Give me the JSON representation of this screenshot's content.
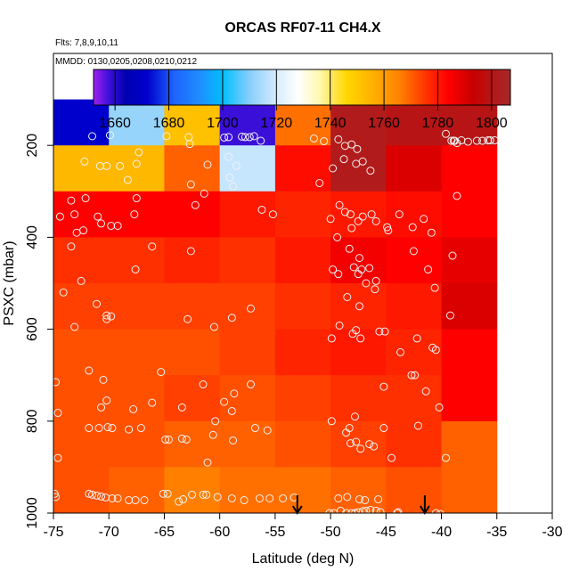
{
  "chart_data": {
    "type": "heatmap",
    "title": "ORCAS RF07-11 CH4.X",
    "subtitle_flights": "Flts: 7,8,9,10,11",
    "subtitle_dates": "MMDD: 0130,0205,0208,0210,0212",
    "xlabel": "Latitude (deg N)",
    "ylabel": "PSXC (mbar)",
    "xlim": [
      -75,
      -30
    ],
    "ylim": [
      1000,
      0
    ],
    "x_ticks": [
      -75,
      -70,
      -65,
      -60,
      -55,
      -50,
      -45,
      -40,
      -35,
      -30
    ],
    "x_tick_labels": [
      "-75",
      "-70",
      "-65",
      "-60",
      "-55",
      "-50",
      "-45",
      "-40",
      "-35",
      "-30"
    ],
    "y_ticks": [
      200,
      400,
      600,
      800,
      1000
    ],
    "y_tick_labels": [
      "200",
      "400",
      "600",
      "800",
      "1000"
    ],
    "colorbar": {
      "min": 1652,
      "max": 1807,
      "ticks": [
        1660,
        1680,
        1700,
        1720,
        1740,
        1760,
        1780,
        1800
      ],
      "tick_labels": [
        "1660",
        "1680",
        "1700",
        "1720",
        "1740",
        "1760",
        "1780",
        "1800"
      ],
      "colors": [
        {
          "v": 1652,
          "c": "#a020f0"
        },
        {
          "v": 1658,
          "c": "#3a0fd8"
        },
        {
          "v": 1664,
          "c": "#0000b0"
        },
        {
          "v": 1672,
          "c": "#0000cd"
        },
        {
          "v": 1682,
          "c": "#1e63ff"
        },
        {
          "v": 1692,
          "c": "#1e90ff"
        },
        {
          "v": 1700,
          "c": "#00bfff"
        },
        {
          "v": 1710,
          "c": "#87cefa"
        },
        {
          "v": 1720,
          "c": "#d6ecff"
        },
        {
          "v": 1728,
          "c": "#ffffff"
        },
        {
          "v": 1736,
          "c": "#fff8b0"
        },
        {
          "v": 1746,
          "c": "#ffd700"
        },
        {
          "v": 1756,
          "c": "#ffb000"
        },
        {
          "v": 1766,
          "c": "#ff8000"
        },
        {
          "v": 1776,
          "c": "#ff3000"
        },
        {
          "v": 1784,
          "c": "#ff0000"
        },
        {
          "v": 1793,
          "c": "#c80000"
        },
        {
          "v": 1807,
          "c": "#a52a2a"
        }
      ]
    },
    "grid_x_edges": [
      -75,
      -70,
      -65,
      -60,
      -55,
      -50,
      -45,
      -40,
      -35
    ],
    "grid_p_edges": [
      100,
      200,
      300,
      400,
      500,
      600,
      700,
      800,
      900,
      1000
    ],
    "cells": [
      [
        1672,
        1712,
        1752,
        1658,
        1768,
        1802,
        1800,
        1800
      ],
      [
        1754,
        1754,
        1770,
        1718,
        1782,
        1802,
        1790,
        1784
      ],
      [
        1784,
        1784,
        1784,
        1780,
        1778,
        1780,
        1782,
        1784
      ],
      [
        1776,
        1776,
        1778,
        1776,
        1780,
        1786,
        1784,
        1788
      ],
      [
        1774,
        1774,
        1774,
        1774,
        1776,
        1778,
        1780,
        1790
      ],
      [
        1772,
        1772,
        1772,
        1774,
        1778,
        1780,
        1778,
        1784
      ],
      [
        1772,
        1772,
        1774,
        1772,
        1774,
        1776,
        1776,
        1784
      ],
      [
        1772,
        1772,
        1770,
        1770,
        1772,
        1774,
        1776,
        1770
      ],
      [
        1772,
        1770,
        1766,
        1768,
        1768,
        1770,
        1772,
        1770
      ]
    ],
    "arrows_lat": [
      -53,
      -41.5
    ],
    "points": [
      [
        -71.5,
        180
      ],
      [
        -69.9,
        178
      ],
      [
        -67.3,
        215
      ],
      [
        -64.8,
        180
      ],
      [
        -62.8,
        182
      ],
      [
        -62.7,
        197
      ],
      [
        -59.6,
        183
      ],
      [
        -59.2,
        182
      ],
      [
        -58,
        181
      ],
      [
        -57.7,
        182
      ],
      [
        -57.3,
        182
      ],
      [
        -56.9,
        180
      ],
      [
        -56.3,
        190
      ],
      [
        -59.2,
        225
      ],
      [
        -58.5,
        245
      ],
      [
        -61.1,
        242
      ],
      [
        -59.1,
        270
      ],
      [
        -58.8,
        289
      ],
      [
        -72.2,
        235
      ],
      [
        -70.8,
        245
      ],
      [
        -70.2,
        245
      ],
      [
        -69,
        245
      ],
      [
        -67.5,
        240
      ],
      [
        -73.4,
        320
      ],
      [
        -72.1,
        315
      ],
      [
        -68.3,
        275
      ],
      [
        -67.5,
        315
      ],
      [
        -62.6,
        285
      ],
      [
        -62.2,
        330
      ],
      [
        -61.4,
        305
      ],
      [
        -56.2,
        340
      ],
      [
        -55.2,
        350
      ],
      [
        -74.4,
        355
      ],
      [
        -73.1,
        350
      ],
      [
        -72.9,
        390
      ],
      [
        -72.3,
        385
      ],
      [
        -69.8,
        375
      ],
      [
        -69.2,
        375
      ],
      [
        -67.7,
        350
      ],
      [
        -66.1,
        420
      ],
      [
        -67.6,
        470
      ],
      [
        -73.4,
        420
      ],
      [
        -74.1,
        520
      ],
      [
        -72.5,
        495
      ],
      [
        -71,
        355
      ],
      [
        -70.7,
        370
      ],
      [
        -62.6,
        430
      ],
      [
        -73.1,
        595
      ],
      [
        -71.1,
        545
      ],
      [
        -70.2,
        570
      ],
      [
        -69.8,
        572
      ],
      [
        -70.2,
        578
      ],
      [
        -62.9,
        578
      ],
      [
        -60.5,
        595
      ],
      [
        -58.9,
        575
      ],
      [
        -57.2,
        555
      ],
      [
        -71.8,
        690
      ],
      [
        -70.5,
        710
      ],
      [
        -74.8,
        715
      ],
      [
        -65.3,
        693
      ],
      [
        -61.5,
        720
      ],
      [
        -59.6,
        758
      ],
      [
        -58.7,
        740
      ],
      [
        -57.2,
        720
      ],
      [
        -70.7,
        770
      ],
      [
        -70.2,
        755
      ],
      [
        -74.6,
        782
      ],
      [
        -67.8,
        774
      ],
      [
        -66.1,
        760
      ],
      [
        -63.4,
        770
      ],
      [
        -60.6,
        830
      ],
      [
        -58.9,
        778
      ],
      [
        -60.4,
        800
      ],
      [
        -71.8,
        815
      ],
      [
        -70.9,
        815
      ],
      [
        -70.1,
        813
      ],
      [
        -69.7,
        815
      ],
      [
        -68.2,
        818
      ],
      [
        -67.1,
        815
      ],
      [
        -64.9,
        840
      ],
      [
        -64.6,
        840
      ],
      [
        -63.4,
        838
      ],
      [
        -63,
        840
      ],
      [
        -61.1,
        890
      ],
      [
        -58.8,
        842
      ],
      [
        -56.8,
        815
      ],
      [
        -55.7,
        820
      ],
      [
        -74.6,
        880
      ],
      [
        -71.8,
        958
      ],
      [
        -71.5,
        960
      ],
      [
        -71.1,
        962
      ],
      [
        -70.7,
        964
      ],
      [
        -70.3,
        966
      ],
      [
        -69.7,
        968
      ],
      [
        -69.2,
        968
      ],
      [
        -68.2,
        972
      ],
      [
        -67.6,
        972
      ],
      [
        -66.8,
        972
      ],
      [
        -65.1,
        958
      ],
      [
        -64.7,
        958
      ],
      [
        -63.7,
        975
      ],
      [
        -63.3,
        970
      ],
      [
        -62.5,
        960
      ],
      [
        -61.5,
        960
      ],
      [
        -61.2,
        960
      ],
      [
        -60.2,
        965
      ],
      [
        -58.9,
        968
      ],
      [
        -57.8,
        972
      ],
      [
        -56.4,
        968
      ],
      [
        -55.5,
        968
      ],
      [
        -54.3,
        968
      ],
      [
        -53.3,
        966
      ],
      [
        -74.9,
        958
      ],
      [
        -74.8,
        965
      ],
      [
        -51.5,
        185
      ],
      [
        -50.6,
        191
      ],
      [
        -49.3,
        187
      ],
      [
        -48.7,
        201
      ],
      [
        -48.1,
        198
      ],
      [
        -47.6,
        208
      ],
      [
        -48.8,
        230
      ],
      [
        -47.7,
        240
      ],
      [
        -47.1,
        235
      ],
      [
        -46.4,
        255
      ],
      [
        -49.8,
        250
      ],
      [
        -51,
        282
      ],
      [
        -47.1,
        355
      ],
      [
        -46.3,
        350
      ],
      [
        -45.9,
        365
      ],
      [
        -44.9,
        378
      ],
      [
        -44.8,
        385
      ],
      [
        -48.1,
        380
      ],
      [
        -47.5,
        365
      ],
      [
        -48.7,
        345
      ],
      [
        -49.2,
        330
      ],
      [
        -50,
        360
      ],
      [
        -49.4,
        400
      ],
      [
        -47.9,
        465
      ],
      [
        -47.4,
        445
      ],
      [
        -47.5,
        480
      ],
      [
        -47.2,
        470
      ],
      [
        -45.9,
        495
      ],
      [
        -46.5,
        467
      ],
      [
        -46.8,
        500
      ],
      [
        -47.4,
        550
      ],
      [
        -48.2,
        350
      ],
      [
        -48.3,
        425
      ],
      [
        -49.8,
        470
      ],
      [
        -49.3,
        480
      ],
      [
        -48.5,
        530
      ],
      [
        -46,
        513
      ],
      [
        -45.6,
        605
      ],
      [
        -43.7,
        650
      ],
      [
        -42.2,
        620
      ],
      [
        -42.7,
        700
      ],
      [
        -45.2,
        725
      ],
      [
        -47.8,
        790
      ],
      [
        -48.3,
        815
      ],
      [
        -48.6,
        825
      ],
      [
        -49.9,
        800
      ],
      [
        -47.3,
        860
      ],
      [
        -46.1,
        855
      ],
      [
        -46.5,
        850
      ],
      [
        -44.5,
        880
      ],
      [
        -45.2,
        815
      ],
      [
        -49.2,
        592
      ],
      [
        -48,
        610
      ],
      [
        -47.7,
        602
      ],
      [
        -47.3,
        620
      ],
      [
        -49.9,
        620
      ],
      [
        -45.1,
        605
      ],
      [
        -43.8,
        350
      ],
      [
        -42.5,
        430
      ],
      [
        -41.2,
        470
      ],
      [
        -40.6,
        510
      ],
      [
        -40.9,
        390
      ],
      [
        -42.6,
        378
      ],
      [
        -41.6,
        360
      ],
      [
        -41.4,
        735
      ],
      [
        -40.5,
        645
      ],
      [
        -40.8,
        640
      ],
      [
        -40.2,
        770
      ],
      [
        -39.6,
        175
      ],
      [
        -38.6,
        195
      ],
      [
        -38.2,
        189
      ],
      [
        -37.6,
        192
      ],
      [
        -36.8,
        190
      ],
      [
        -36.3,
        190
      ],
      [
        -35.8,
        189
      ],
      [
        -35.6,
        189
      ],
      [
        -35.2,
        189
      ],
      [
        -39.1,
        190
      ],
      [
        -38.9,
        190
      ],
      [
        -38.8,
        190
      ],
      [
        -38.6,
        310
      ],
      [
        -39,
        440
      ],
      [
        -39.2,
        570
      ],
      [
        -42.4,
        700
      ],
      [
        -42.1,
        810
      ],
      [
        -39.6,
        880
      ],
      [
        -40.5,
        1000
      ],
      [
        -40.1,
        1002
      ],
      [
        -43.9,
        998
      ],
      [
        -44,
        1000
      ],
      [
        -47.1,
        996
      ],
      [
        -47.5,
        998
      ],
      [
        -48.1,
        1000
      ],
      [
        -48.6,
        1000
      ],
      [
        -49.1,
        995
      ],
      [
        -49.7,
        1000
      ],
      [
        -50.1,
        1000
      ],
      [
        -47.8,
        1000
      ],
      [
        -46.8,
        995
      ],
      [
        -46.4,
        993
      ],
      [
        -45.9,
        995
      ],
      [
        -45.5,
        998
      ],
      [
        -49.3,
        968
      ],
      [
        -48.5,
        965
      ],
      [
        -47.4,
        970
      ],
      [
        -46.9,
        972
      ],
      [
        -45.7,
        970
      ],
      [
        -48.2,
        848
      ],
      [
        -47.7,
        845
      ]
    ]
  }
}
